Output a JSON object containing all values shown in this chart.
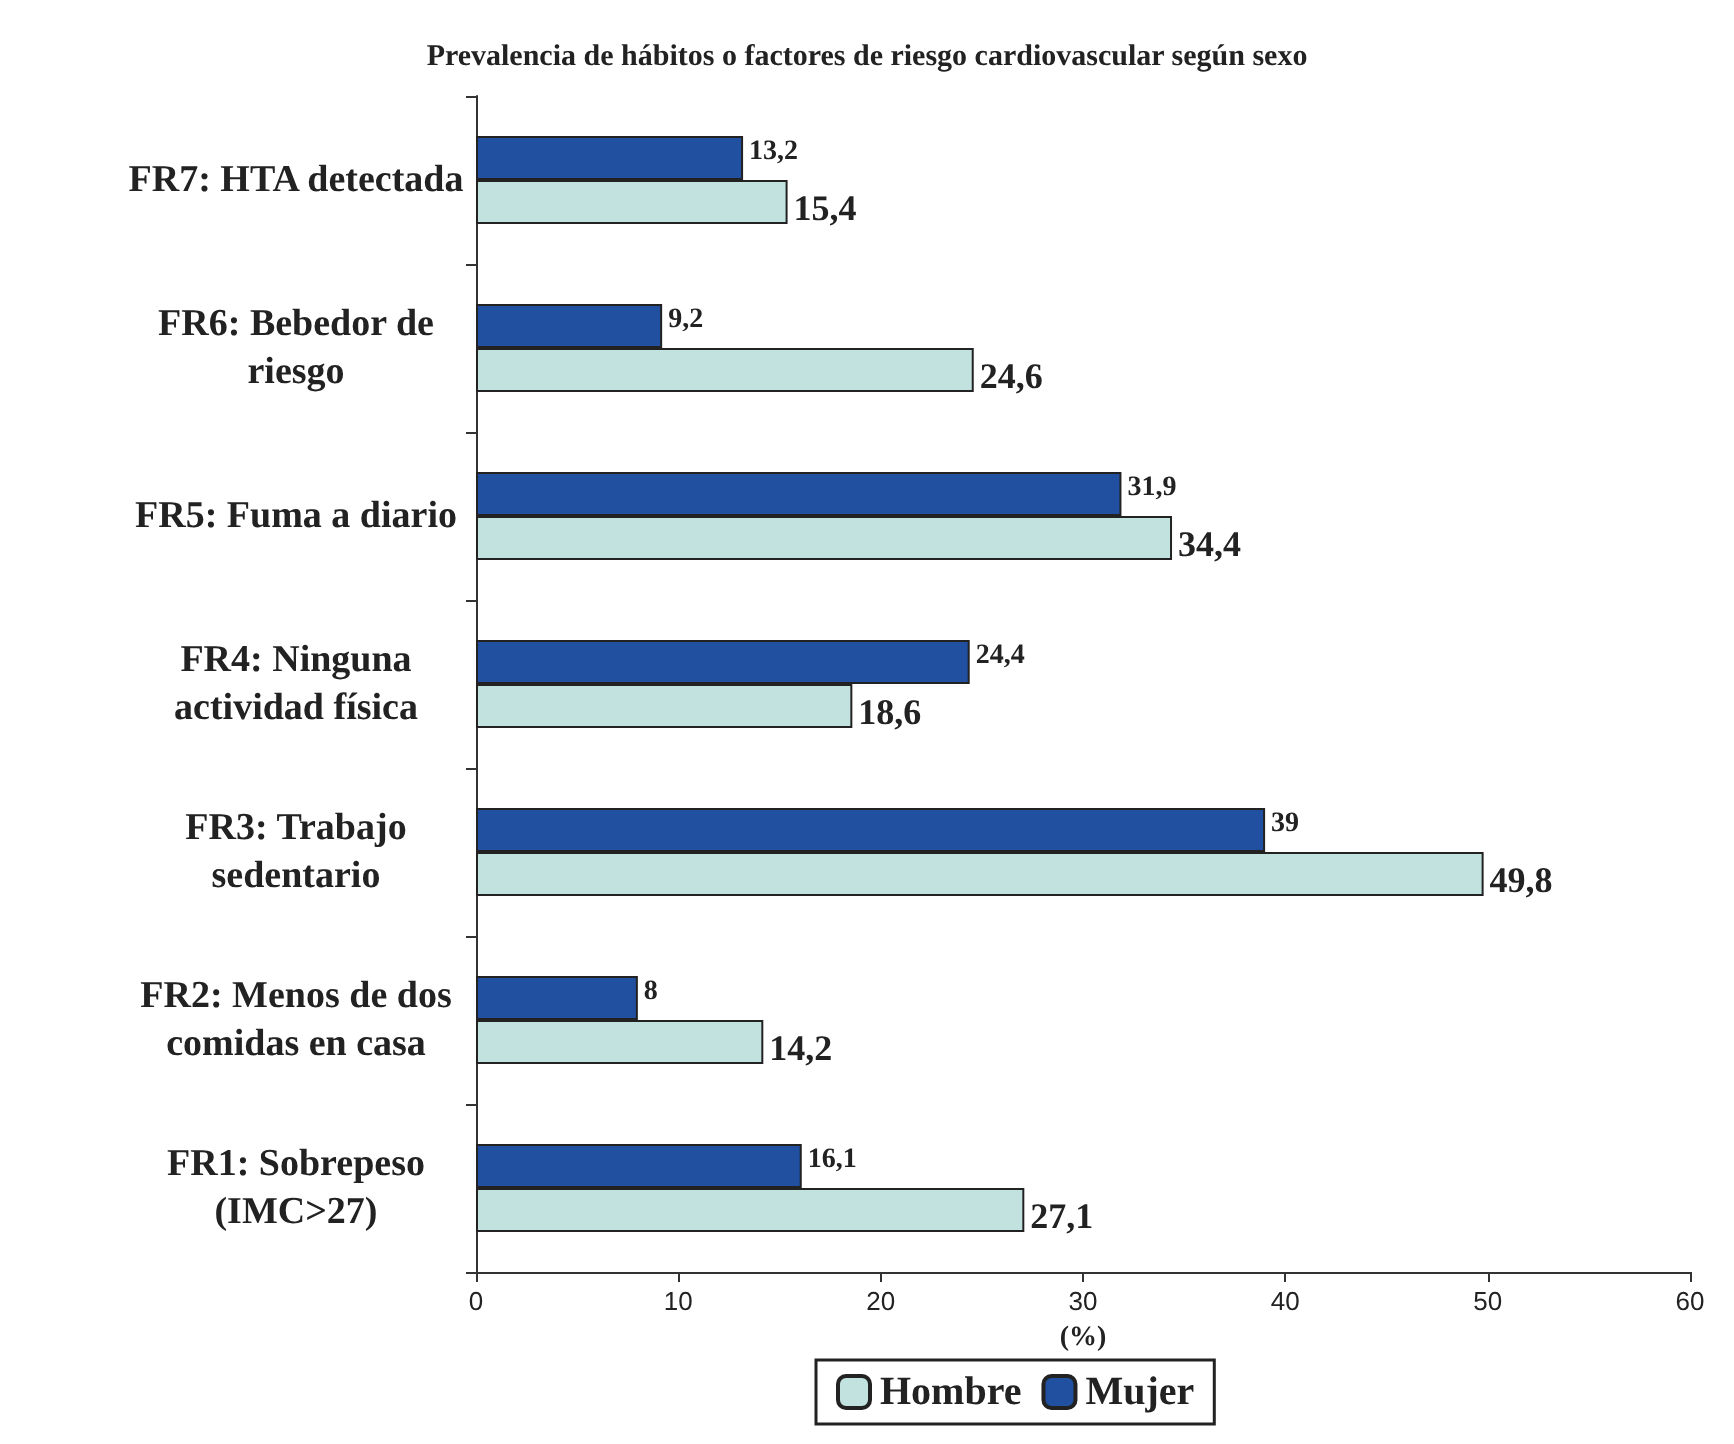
{
  "chart_data": {
    "type": "bar",
    "orientation": "horizontal",
    "title": "Prevalencia de hábitos o factores de riesgo cardiovascular según sexo",
    "xlabel": "(%)",
    "categories": [
      "FR7: HTA detectada",
      "FR6: Bebedor de\nriesgo",
      "FR5: Fuma a diario",
      "FR4: Ninguna\nactividad física",
      "FR3: Trabajo\nsedentario",
      "FR2: Menos de dos\ncomidas en casa",
      "FR1: Sobrepeso\n(IMC>27)"
    ],
    "series": [
      {
        "name": "Hombre",
        "color": "#c2e2df",
        "values": [
          15.4,
          24.6,
          34.4,
          18.6,
          49.8,
          14.2,
          27.1
        ],
        "value_labels": [
          "15,4",
          "24,6",
          "34,4",
          "18,6",
          "49,8",
          "14,2",
          "27,1"
        ]
      },
      {
        "name": "Mujer",
        "color": "#2150a0",
        "values": [
          13.2,
          9.2,
          31.9,
          24.4,
          39,
          8,
          16.1
        ],
        "value_labels": [
          "13,2",
          "9,2",
          "31,9",
          "24,4",
          "39",
          "8",
          "16,1"
        ]
      }
    ],
    "xlim": [
      0,
      60
    ],
    "xticks": [
      0,
      10,
      20,
      30,
      40,
      50,
      60
    ],
    "grid": false,
    "legend": "bottom"
  }
}
